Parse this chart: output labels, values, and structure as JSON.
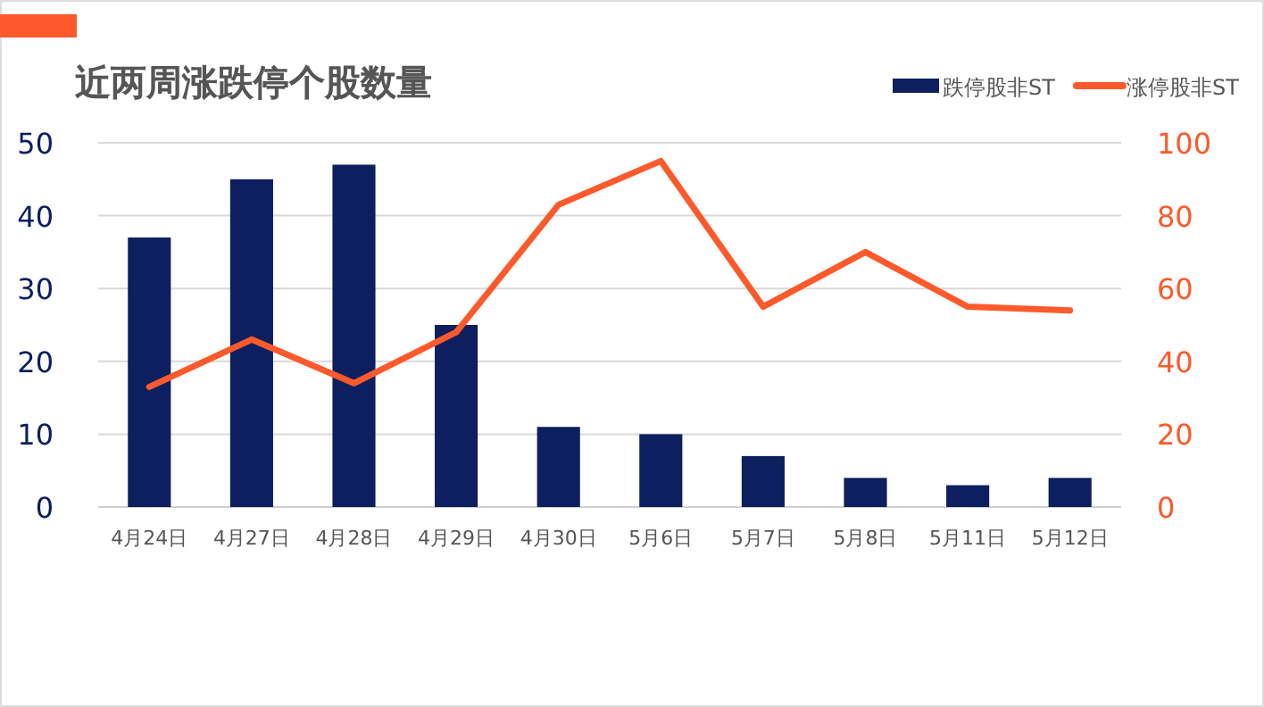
{
  "chart_data": {
    "type": "bar",
    "title": "近两周涨跌停个股数量",
    "categories": [
      "4月24日",
      "4月27日",
      "4月28日",
      "4月29日",
      "4月30日",
      "5月6日",
      "5月7日",
      "5月8日",
      "5月11日",
      "5月12日"
    ],
    "series": [
      {
        "name": "跌停股非ST",
        "color": "#0d1f5e",
        "values": [
          37,
          45,
          47,
          25,
          11,
          10,
          7,
          4,
          3,
          4
        ]
      },
      {
        "name": "涨停股非ST",
        "type": "line",
        "axis": "y2",
        "color": "#fc5a2c",
        "values": [
          33,
          46,
          34,
          48,
          83,
          95,
          55,
          70,
          55,
          54
        ]
      }
    ],
    "ylim": [
      0,
      50
    ],
    "yticks": [
      0,
      10,
      20,
      30,
      40,
      50
    ],
    "y2lim": [
      0,
      100
    ],
    "y2ticks": [
      0,
      20,
      40,
      60,
      80,
      100
    ],
    "grid": "y",
    "legend": "top right"
  }
}
